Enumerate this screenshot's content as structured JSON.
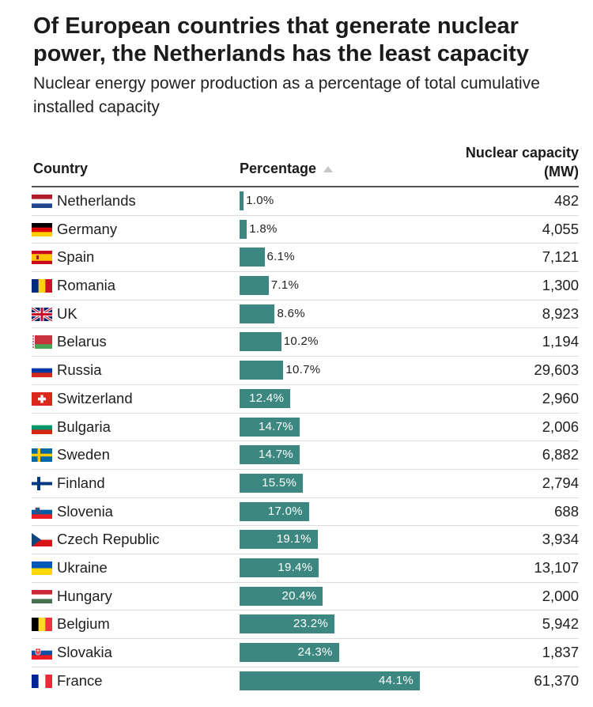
{
  "title": "Of European countries that generate nuclear power, the Netherlands has the least capacity",
  "subtitle": "Nuclear energy power production as a percentage of total cumulative installed capacity",
  "headers": {
    "country": "Country",
    "percentage": "Percentage",
    "capacity_line1": "Nuclear capacity",
    "capacity_line2": "(MW)"
  },
  "colors": {
    "bar": "#3c8780",
    "rule": "#555555",
    "divider": "#dcdcdc"
  },
  "chart_data": {
    "type": "table",
    "title": "Of European countries that generate nuclear power, the Netherlands has the least capacity",
    "subtitle": "Nuclear energy power production as a percentage of total cumulative installed capacity",
    "columns": [
      "Country",
      "Percentage",
      "Nuclear capacity (MW)"
    ],
    "sort": "Percentage ascending",
    "max_percentage": 44.1,
    "rows": [
      {
        "country": "Netherlands",
        "flag": "netherlands-flag-icon",
        "percentage": 1.0,
        "percentage_label": "1.0%",
        "capacity": "482"
      },
      {
        "country": "Germany",
        "flag": "germany-flag-icon",
        "percentage": 1.8,
        "percentage_label": "1.8%",
        "capacity": "4,055"
      },
      {
        "country": "Spain",
        "flag": "spain-flag-icon",
        "percentage": 6.1,
        "percentage_label": "6.1%",
        "capacity": "7,121"
      },
      {
        "country": "Romania",
        "flag": "romania-flag-icon",
        "percentage": 7.1,
        "percentage_label": "7.1%",
        "capacity": "1,300"
      },
      {
        "country": "UK",
        "flag": "uk-flag-icon",
        "percentage": 8.6,
        "percentage_label": "8.6%",
        "capacity": "8,923"
      },
      {
        "country": "Belarus",
        "flag": "belarus-flag-icon",
        "percentage": 10.2,
        "percentage_label": "10.2%",
        "capacity": "1,194"
      },
      {
        "country": "Russia",
        "flag": "russia-flag-icon",
        "percentage": 10.7,
        "percentage_label": "10.7%",
        "capacity": "29,603"
      },
      {
        "country": "Switzerland",
        "flag": "switzerland-flag-icon",
        "percentage": 12.4,
        "percentage_label": "12.4%",
        "capacity": "2,960"
      },
      {
        "country": "Bulgaria",
        "flag": "bulgaria-flag-icon",
        "percentage": 14.7,
        "percentage_label": "14.7%",
        "capacity": "2,006"
      },
      {
        "country": "Sweden",
        "flag": "sweden-flag-icon",
        "percentage": 14.7,
        "percentage_label": "14.7%",
        "capacity": "6,882"
      },
      {
        "country": "Finland",
        "flag": "finland-flag-icon",
        "percentage": 15.5,
        "percentage_label": "15.5%",
        "capacity": "2,794"
      },
      {
        "country": "Slovenia",
        "flag": "slovenia-flag-icon",
        "percentage": 17.0,
        "percentage_label": "17.0%",
        "capacity": "688"
      },
      {
        "country": "Czech Republic",
        "flag": "czech-republic-flag-icon",
        "percentage": 19.1,
        "percentage_label": "19.1%",
        "capacity": "3,934"
      },
      {
        "country": "Ukraine",
        "flag": "ukraine-flag-icon",
        "percentage": 19.4,
        "percentage_label": "19.4%",
        "capacity": "13,107"
      },
      {
        "country": "Hungary",
        "flag": "hungary-flag-icon",
        "percentage": 20.4,
        "percentage_label": "20.4%",
        "capacity": "2,000"
      },
      {
        "country": "Belgium",
        "flag": "belgium-flag-icon",
        "percentage": 23.2,
        "percentage_label": "23.2%",
        "capacity": "5,942"
      },
      {
        "country": "Slovakia",
        "flag": "slovakia-flag-icon",
        "percentage": 24.3,
        "percentage_label": "24.3%",
        "capacity": "1,837"
      },
      {
        "country": "France",
        "flag": "france-flag-icon",
        "percentage": 44.1,
        "percentage_label": "44.1%",
        "capacity": "61,370"
      }
    ]
  }
}
